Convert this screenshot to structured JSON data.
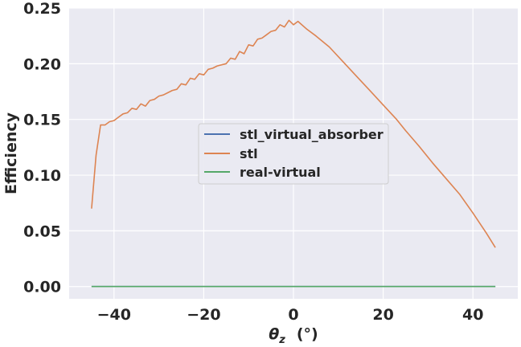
{
  "chart_data": {
    "type": "line",
    "title": "",
    "xlabel_symbol": "θ",
    "xlabel_sub": "z",
    "xlabel_unit": "(°)",
    "ylabel": "Efficiency",
    "xlim": [
      -50,
      50
    ],
    "ylim": [
      -0.011,
      0.25
    ],
    "xticks": [
      -40,
      -20,
      0,
      20,
      40
    ],
    "xtick_labels": [
      "−40",
      "−20",
      "0",
      "20",
      "40"
    ],
    "yticks": [
      0.0,
      0.05,
      0.1,
      0.15,
      0.2,
      0.25
    ],
    "ytick_labels": [
      "0.00",
      "0.05",
      "0.10",
      "0.15",
      "0.20",
      "0.25"
    ],
    "grid": true,
    "legend_position": "center",
    "colors": {
      "background": "#eaeaf2",
      "grid": "#ffffff"
    },
    "series": [
      {
        "name": "stl_virtual_absorber",
        "color": "#4c72b0",
        "x": [
          -45,
          45
        ],
        "y": [
          0.0,
          0.0
        ]
      },
      {
        "name": "stl",
        "color": "#dd8452",
        "x": [
          -45,
          -44,
          -43,
          -42,
          -41,
          -40,
          -39,
          -38,
          -37,
          -36,
          -35,
          -34,
          -33,
          -32,
          -31,
          -30,
          -29,
          -28,
          -27,
          -26,
          -25,
          -24,
          -23,
          -22,
          -21,
          -20,
          -19,
          -18,
          -17,
          -16,
          -15,
          -14,
          -13,
          -12,
          -11,
          -10,
          -9,
          -8,
          -7,
          -6,
          -5,
          -4,
          -3,
          -2,
          -1,
          0,
          1,
          3,
          5,
          8,
          11,
          14,
          17,
          20,
          23,
          25,
          28,
          31,
          34,
          37,
          40,
          43,
          45
        ],
        "y": [
          0.07,
          0.118,
          0.145,
          0.145,
          0.148,
          0.149,
          0.152,
          0.155,
          0.156,
          0.16,
          0.159,
          0.164,
          0.162,
          0.167,
          0.168,
          0.171,
          0.172,
          0.174,
          0.176,
          0.177,
          0.182,
          0.181,
          0.187,
          0.186,
          0.191,
          0.19,
          0.195,
          0.196,
          0.198,
          0.199,
          0.2,
          0.205,
          0.204,
          0.211,
          0.209,
          0.217,
          0.216,
          0.222,
          0.223,
          0.226,
          0.229,
          0.23,
          0.235,
          0.233,
          0.239,
          0.235,
          0.238,
          0.231,
          0.225,
          0.215,
          0.202,
          0.189,
          0.176,
          0.163,
          0.15,
          0.14,
          0.126,
          0.111,
          0.097,
          0.083,
          0.066,
          0.048,
          0.035
        ]
      },
      {
        "name": "real-virtual",
        "color": "#55a868",
        "x": [
          -45,
          45
        ],
        "y": [
          0.0,
          0.0
        ]
      }
    ]
  }
}
